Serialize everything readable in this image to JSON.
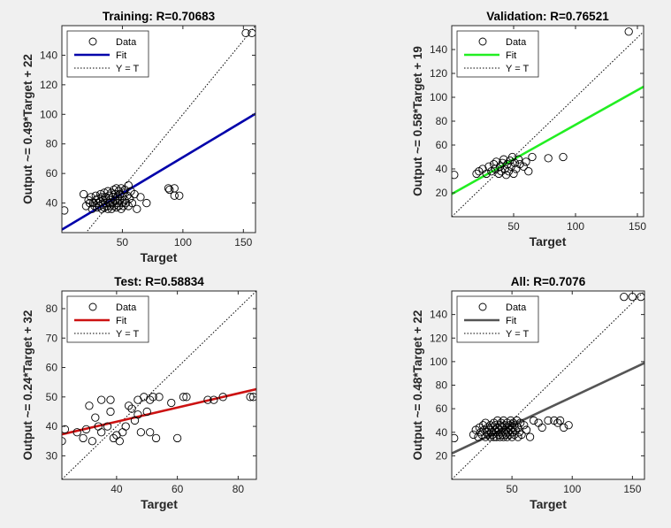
{
  "chart_data": [
    {
      "type": "scatter",
      "title": "Training: R=0.70683",
      "xlabel": "Target",
      "ylabel": "Output ~= 0.49*Target + 22",
      "xlim": [
        0,
        160
      ],
      "ylim": [
        20,
        160
      ],
      "xticks": [
        50,
        100,
        150
      ],
      "yticks": [
        40,
        60,
        80,
        100,
        120,
        140
      ],
      "fit": {
        "slope": 0.49,
        "intercept": 22,
        "color": "#0000aa"
      },
      "legend": {
        "placement": "top-left",
        "entries": [
          "Data",
          "Fit",
          "Y = T"
        ]
      },
      "points": [
        [
          2,
          35
        ],
        [
          18,
          46
        ],
        [
          20,
          38
        ],
        [
          22,
          42
        ],
        [
          23,
          40
        ],
        [
          24,
          44
        ],
        [
          25,
          36
        ],
        [
          26,
          40
        ],
        [
          27,
          38
        ],
        [
          28,
          42
        ],
        [
          28,
          45
        ],
        [
          29,
          37
        ],
        [
          30,
          40
        ],
        [
          30,
          43
        ],
        [
          31,
          38
        ],
        [
          32,
          41
        ],
        [
          32,
          46
        ],
        [
          33,
          36
        ],
        [
          33,
          44
        ],
        [
          34,
          39
        ],
        [
          34,
          42
        ],
        [
          35,
          37
        ],
        [
          35,
          47
        ],
        [
          36,
          40
        ],
        [
          36,
          44
        ],
        [
          37,
          38
        ],
        [
          37,
          42
        ],
        [
          38,
          36
        ],
        [
          38,
          48
        ],
        [
          39,
          40
        ],
        [
          39,
          45
        ],
        [
          40,
          38
        ],
        [
          40,
          42
        ],
        [
          41,
          36
        ],
        [
          41,
          47
        ],
        [
          42,
          40
        ],
        [
          42,
          44
        ],
        [
          43,
          38
        ],
        [
          43,
          49
        ],
        [
          44,
          42
        ],
        [
          44,
          46
        ],
        [
          45,
          37
        ],
        [
          45,
          50
        ],
        [
          46,
          40
        ],
        [
          46,
          44
        ],
        [
          47,
          38
        ],
        [
          47,
          48
        ],
        [
          48,
          42
        ],
        [
          48,
          46
        ],
        [
          49,
          36
        ],
        [
          49,
          50
        ],
        [
          50,
          40
        ],
        [
          50,
          44
        ],
        [
          51,
          38
        ],
        [
          51,
          47
        ],
        [
          52,
          42
        ],
        [
          52,
          49
        ],
        [
          53,
          40
        ],
        [
          54,
          45
        ],
        [
          55,
          38
        ],
        [
          55,
          52
        ],
        [
          56,
          43
        ],
        [
          57,
          48
        ],
        [
          58,
          40
        ],
        [
          60,
          46
        ],
        [
          62,
          36
        ],
        [
          65,
          44
        ],
        [
          70,
          40
        ],
        [
          88,
          50
        ],
        [
          89,
          49
        ],
        [
          93,
          50
        ],
        [
          93,
          45
        ],
        [
          97,
          45
        ],
        [
          152,
          155
        ],
        [
          157,
          155
        ]
      ]
    },
    {
      "type": "scatter",
      "title": "Validation: R=0.76521",
      "xlabel": "Target",
      "ylabel": "Output ~= 0.58*Target + 19",
      "xlim": [
        0,
        155
      ],
      "ylim": [
        0,
        160
      ],
      "xticks": [
        50,
        100,
        150
      ],
      "yticks": [
        20,
        40,
        60,
        80,
        100,
        120,
        140
      ],
      "fit": {
        "slope": 0.58,
        "intercept": 19,
        "color": "#22ee22"
      },
      "legend": {
        "placement": "top-left",
        "entries": [
          "Data",
          "Fit",
          "Y = T"
        ]
      },
      "points": [
        [
          2,
          35
        ],
        [
          20,
          36
        ],
        [
          22,
          38
        ],
        [
          25,
          40
        ],
        [
          28,
          36
        ],
        [
          30,
          42
        ],
        [
          32,
          38
        ],
        [
          34,
          44
        ],
        [
          35,
          40
        ],
        [
          36,
          46
        ],
        [
          38,
          36
        ],
        [
          39,
          42
        ],
        [
          40,
          38
        ],
        [
          41,
          45
        ],
        [
          42,
          48
        ],
        [
          43,
          40
        ],
        [
          44,
          35
        ],
        [
          45,
          44
        ],
        [
          46,
          38
        ],
        [
          47,
          47
        ],
        [
          48,
          42
        ],
        [
          49,
          50
        ],
        [
          50,
          36
        ],
        [
          51,
          45
        ],
        [
          52,
          40
        ],
        [
          54,
          48
        ],
        [
          55,
          44
        ],
        [
          58,
          42
        ],
        [
          60,
          46
        ],
        [
          62,
          38
        ],
        [
          65,
          50
        ],
        [
          78,
          49
        ],
        [
          90,
          50
        ],
        [
          143,
          155
        ]
      ]
    },
    {
      "type": "scatter",
      "title": "Test: R=0.58834",
      "xlabel": "Target",
      "ylabel": "Output ~= 0.24*Target + 32",
      "xlim": [
        22,
        86
      ],
      "ylim": [
        22,
        86
      ],
      "xticks": [
        40,
        60,
        80
      ],
      "yticks": [
        30,
        40,
        50,
        60,
        70,
        80
      ],
      "fit": {
        "slope": 0.24,
        "intercept": 32,
        "color": "#cc1111"
      },
      "legend": {
        "placement": "top-left",
        "entries": [
          "Data",
          "Fit",
          "Y = T"
        ]
      },
      "points": [
        [
          22,
          35
        ],
        [
          23,
          39
        ],
        [
          27,
          38
        ],
        [
          29,
          36
        ],
        [
          30,
          39
        ],
        [
          31,
          47
        ],
        [
          32,
          35
        ],
        [
          33,
          43
        ],
        [
          34,
          40
        ],
        [
          35,
          49
        ],
        [
          35,
          38
        ],
        [
          37,
          40
        ],
        [
          38,
          49
        ],
        [
          38,
          45
        ],
        [
          39,
          36
        ],
        [
          40,
          37
        ],
        [
          41,
          35
        ],
        [
          42,
          38
        ],
        [
          43,
          40
        ],
        [
          44,
          47
        ],
        [
          45,
          46
        ],
        [
          46,
          42
        ],
        [
          47,
          44
        ],
        [
          47,
          49
        ],
        [
          48,
          38
        ],
        [
          49,
          50
        ],
        [
          50,
          45
        ],
        [
          51,
          38
        ],
        [
          51,
          49
        ],
        [
          52,
          50
        ],
        [
          53,
          36
        ],
        [
          54,
          50
        ],
        [
          58,
          48
        ],
        [
          60,
          36
        ],
        [
          62,
          50
        ],
        [
          63,
          50
        ],
        [
          70,
          49
        ],
        [
          72,
          49
        ],
        [
          75,
          50
        ],
        [
          84,
          50
        ],
        [
          85,
          50
        ]
      ]
    },
    {
      "type": "scatter",
      "title": "All: R=0.7076",
      "xlabel": "Target",
      "ylabel": "Output ~= 0.48*Target + 22",
      "xlim": [
        0,
        160
      ],
      "ylim": [
        0,
        160
      ],
      "xticks": [
        50,
        100,
        150
      ],
      "yticks": [
        20,
        40,
        60,
        80,
        100,
        120,
        140
      ],
      "fit": {
        "slope": 0.48,
        "intercept": 22,
        "color": "#555555"
      },
      "legend": {
        "placement": "top-left",
        "entries": [
          "Data",
          "Fit",
          "Y = T"
        ]
      },
      "points": [
        [
          2,
          35
        ],
        [
          18,
          38
        ],
        [
          20,
          42
        ],
        [
          22,
          36
        ],
        [
          23,
          44
        ],
        [
          24,
          40
        ],
        [
          25,
          38
        ],
        [
          26,
          46
        ],
        [
          27,
          42
        ],
        [
          28,
          36
        ],
        [
          28,
          48
        ],
        [
          29,
          40
        ],
        [
          30,
          44
        ],
        [
          30,
          38
        ],
        [
          31,
          42
        ],
        [
          32,
          36
        ],
        [
          32,
          46
        ],
        [
          33,
          40
        ],
        [
          34,
          44
        ],
        [
          34,
          38
        ],
        [
          35,
          48
        ],
        [
          35,
          36
        ],
        [
          36,
          42
        ],
        [
          36,
          46
        ],
        [
          37,
          40
        ],
        [
          37,
          36
        ],
        [
          38,
          44
        ],
        [
          38,
          50
        ],
        [
          39,
          38
        ],
        [
          39,
          42
        ],
        [
          40,
          36
        ],
        [
          40,
          46
        ],
        [
          41,
          40
        ],
        [
          41,
          48
        ],
        [
          42,
          38
        ],
        [
          42,
          44
        ],
        [
          43,
          36
        ],
        [
          43,
          50
        ],
        [
          44,
          40
        ],
        [
          44,
          46
        ],
        [
          45,
          38
        ],
        [
          45,
          42
        ],
        [
          46,
          48
        ],
        [
          46,
          36
        ],
        [
          47,
          44
        ],
        [
          47,
          40
        ],
        [
          48,
          46
        ],
        [
          48,
          38
        ],
        [
          49,
          42
        ],
        [
          49,
          50
        ],
        [
          50,
          36
        ],
        [
          50,
          44
        ],
        [
          51,
          40
        ],
        [
          51,
          48
        ],
        [
          52,
          38
        ],
        [
          52,
          46
        ],
        [
          53,
          42
        ],
        [
          54,
          50
        ],
        [
          55,
          36
        ],
        [
          55,
          44
        ],
        [
          56,
          40
        ],
        [
          57,
          48
        ],
        [
          58,
          38
        ],
        [
          60,
          46
        ],
        [
          62,
          42
        ],
        [
          65,
          36
        ],
        [
          68,
          50
        ],
        [
          72,
          48
        ],
        [
          75,
          44
        ],
        [
          80,
          50
        ],
        [
          85,
          50
        ],
        [
          88,
          48
        ],
        [
          90,
          50
        ],
        [
          93,
          44
        ],
        [
          97,
          46
        ],
        [
          143,
          155
        ],
        [
          150,
          155
        ],
        [
          157,
          155
        ]
      ]
    }
  ]
}
